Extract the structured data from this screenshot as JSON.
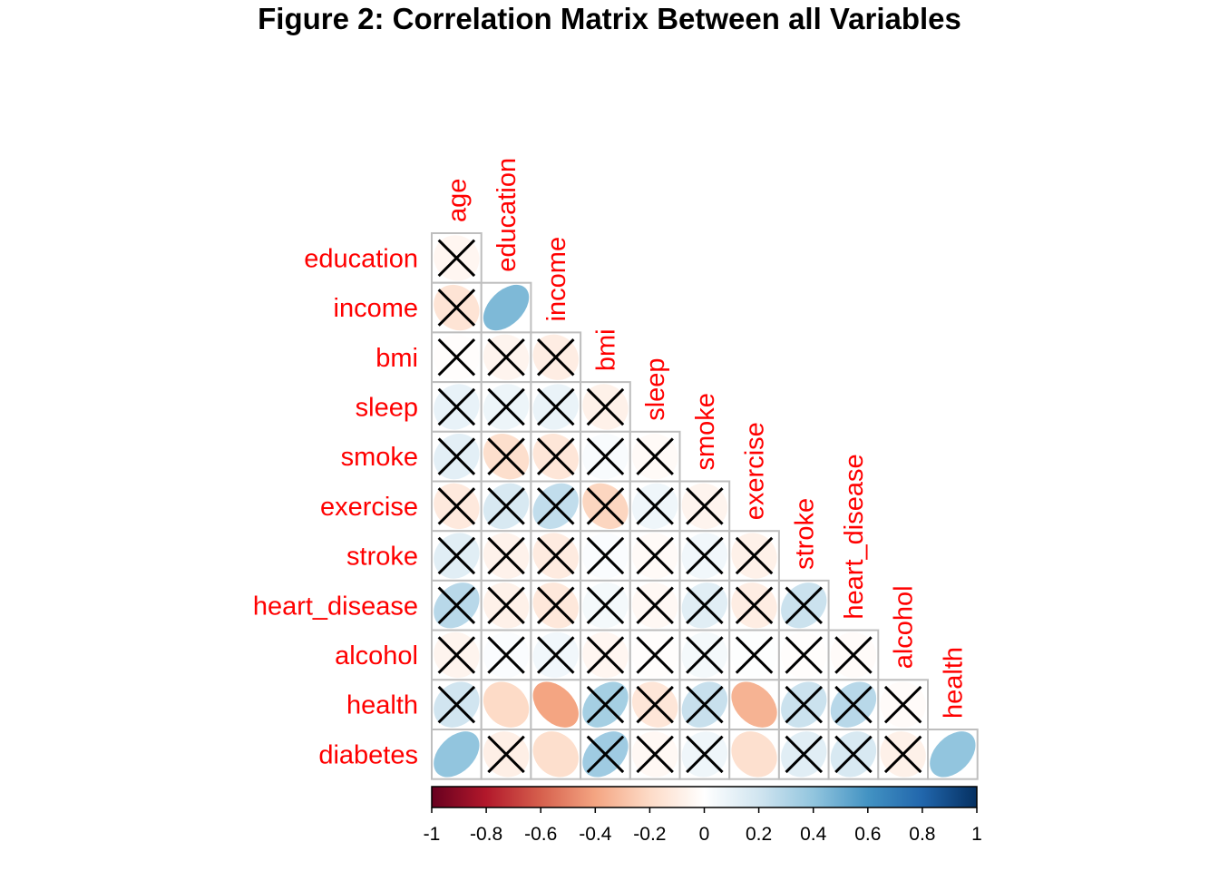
{
  "title": "Figure 2: Correlation Matrix Between all Variables",
  "chart_data": {
    "type": "heatmap",
    "title": "Figure 2: Correlation Matrix Between all Variables",
    "variables": [
      "age",
      "education",
      "income",
      "bmi",
      "sleep",
      "smoke",
      "exercise",
      "stroke",
      "heart_disease",
      "alcohol",
      "health",
      "diabetes"
    ],
    "row_labels": [
      "education",
      "income",
      "bmi",
      "sleep",
      "smoke",
      "exercise",
      "stroke",
      "heart_disease",
      "alcohol",
      "health",
      "diabetes"
    ],
    "col_labels": [
      "age",
      "education",
      "income",
      "bmi",
      "sleep",
      "smoke",
      "exercise",
      "stroke",
      "heart_disease",
      "alcohol",
      "health"
    ],
    "layout": "lower-triangle",
    "cell_shape": "ellipse",
    "insignificant_marker": "cross",
    "rows": [
      {
        "row": "education",
        "values": [
          -0.05
        ],
        "insignificant": [
          true
        ]
      },
      {
        "row": "income",
        "values": [
          -0.15,
          0.45
        ],
        "insignificant": [
          true,
          false
        ]
      },
      {
        "row": "bmi",
        "values": [
          -0.01,
          -0.06,
          -0.1
        ],
        "insignificant": [
          true,
          true,
          true
        ]
      },
      {
        "row": "sleep",
        "values": [
          0.1,
          0.08,
          0.09,
          -0.08
        ],
        "insignificant": [
          true,
          true,
          true,
          true
        ]
      },
      {
        "row": "smoke",
        "values": [
          0.12,
          -0.18,
          -0.14,
          0.03,
          -0.03
        ],
        "insignificant": [
          true,
          true,
          true,
          true,
          true
        ]
      },
      {
        "row": "exercise",
        "values": [
          -0.12,
          0.17,
          0.25,
          -0.22,
          0.07,
          -0.06
        ],
        "insignificant": [
          true,
          true,
          true,
          true,
          true,
          true
        ]
      },
      {
        "row": "stroke",
        "values": [
          0.13,
          -0.07,
          -0.11,
          0.02,
          -0.03,
          0.06,
          -0.08
        ],
        "insignificant": [
          true,
          true,
          true,
          true,
          true,
          true,
          true
        ]
      },
      {
        "row": "heart_disease",
        "values": [
          0.28,
          -0.08,
          -0.13,
          0.05,
          -0.04,
          0.13,
          -0.1,
          0.22
        ],
        "insignificant": [
          true,
          true,
          true,
          true,
          true,
          true,
          true,
          true
        ]
      },
      {
        "row": "alcohol",
        "values": [
          -0.06,
          0.02,
          0.06,
          -0.05,
          -0.01,
          0.05,
          0.01,
          -0.01,
          -0.02
        ],
        "insignificant": [
          true,
          true,
          true,
          true,
          true,
          true,
          true,
          true,
          true
        ]
      },
      {
        "row": "health",
        "values": [
          0.2,
          -0.2,
          -0.4,
          0.34,
          -0.14,
          0.23,
          -0.35,
          0.22,
          0.28,
          -0.02
        ],
        "insignificant": [
          true,
          false,
          false,
          true,
          true,
          true,
          false,
          true,
          true,
          true
        ]
      },
      {
        "row": "diabetes",
        "values": [
          0.4,
          -0.09,
          -0.18,
          0.36,
          -0.04,
          0.07,
          -0.17,
          0.13,
          0.17,
          -0.08,
          0.4
        ],
        "insignificant": [
          false,
          true,
          false,
          true,
          true,
          true,
          false,
          true,
          true,
          true,
          false
        ]
      }
    ],
    "colorbar": {
      "range": [
        -1,
        1
      ],
      "ticks": [
        "-1",
        "-0.8",
        "-0.6",
        "-0.4",
        "-0.2",
        "0",
        "0.2",
        "0.4",
        "0.6",
        "0.8",
        "1"
      ],
      "colors": [
        "#67001F",
        "#B2182B",
        "#D6604D",
        "#F4A582",
        "#FDDBC7",
        "#FFFFFF",
        "#D1E5F0",
        "#92C5DE",
        "#4393C3",
        "#2166AC",
        "#053061"
      ]
    },
    "label_color": "#FF0000",
    "grid_color": "#BEBEBE"
  }
}
